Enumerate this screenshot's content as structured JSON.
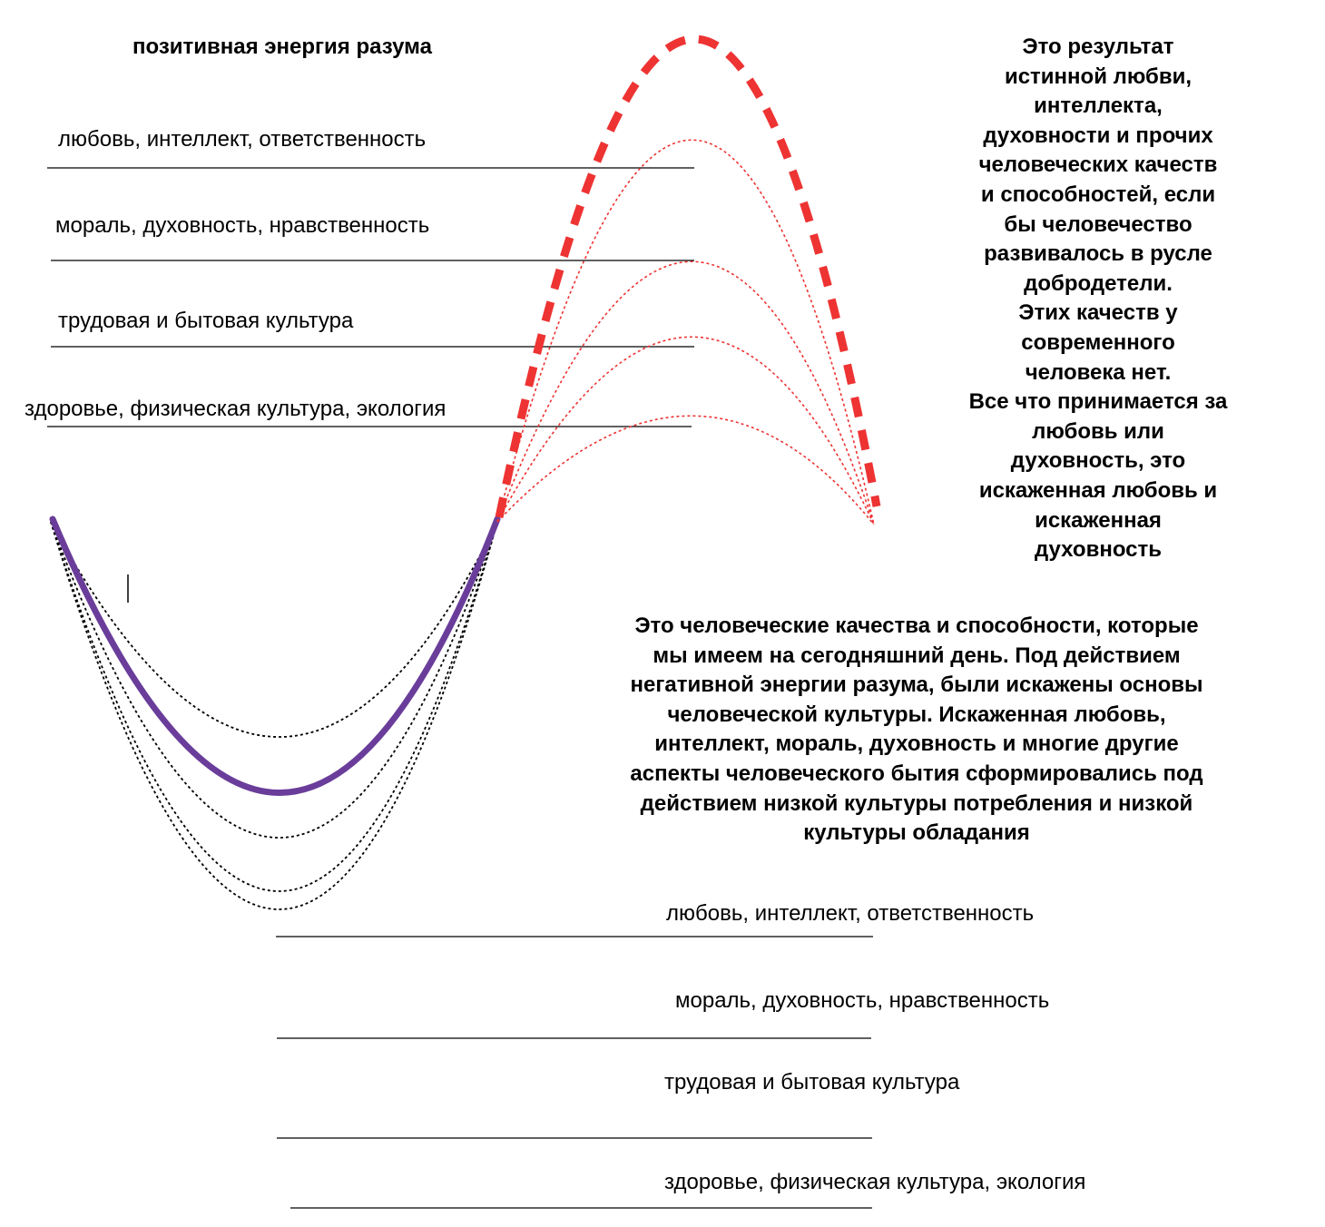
{
  "title": "позитивная энергия разума",
  "upper_levels": [
    "любовь, интеллект, ответственность",
    "мораль, духовность, нравственность",
    "трудовая и бытовая культура",
    "здоровье, физическая культура, экология"
  ],
  "lower_levels": [
    "любовь, интеллект, ответственность",
    "мораль, духовность, нравственность",
    "трудовая и бытовая культура",
    "здоровье, физическая культура, экология"
  ],
  "right_text": [
    "Это результат",
    "истинной любви,",
    "интеллекта,",
    "духовности и прочих",
    "человеческих качеств",
    "и способностей, если",
    "бы человечество",
    "развивалось в русле",
    "добродетели.",
    "Этих качеств у",
    "современного",
    "человека нет.",
    "Все что принимается за",
    "любовь или",
    "духовность, это",
    "искаженная любовь и",
    "искаженная",
    "духовность"
  ],
  "center_text": [
    "Это человеческие качества и способности, которые",
    "мы имеем на сегодняшний день. Под действием",
    "негативной энергии разума, были искажены основы",
    "человеческой культуры. Искаженная любовь,",
    "интеллект, мораль, духовность и многие другие",
    "аспекты человеческого бытия сформировались под",
    "действием низкой культуры потребления и низкой",
    "культуры обладания"
  ],
  "colors": {
    "positive_curve": "#ee3333",
    "negative_curve": "#6a3d9a",
    "dotted_negative": "#000000",
    "level_line": "#000000"
  }
}
